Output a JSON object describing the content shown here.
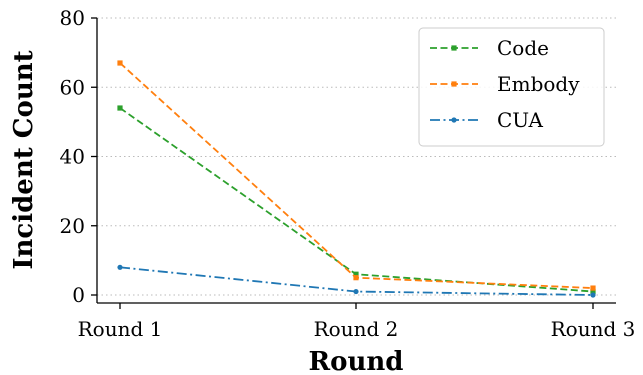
{
  "chart_data": {
    "type": "line",
    "categories": [
      "Round 1",
      "Round 2",
      "Round 3"
    ],
    "xlabel": "Round",
    "ylabel": "Incident Count",
    "ylim": [
      0,
      80
    ],
    "yticks": [
      0,
      20,
      40,
      60,
      80
    ],
    "grid": "horizontal dotted",
    "legend_position": "top-right",
    "series": [
      {
        "name": "Code",
        "values": [
          54,
          6,
          1
        ],
        "color": "#2ca02c",
        "dash": "dashed",
        "marker": "square"
      },
      {
        "name": "Embody",
        "values": [
          67,
          5,
          2
        ],
        "color": "#ff7f0e",
        "dash": "dashed",
        "marker": "square"
      },
      {
        "name": "CUA",
        "values": [
          8,
          1,
          0
        ],
        "color": "#1f77b4",
        "dash": "dash-dot",
        "marker": "circle"
      }
    ]
  }
}
